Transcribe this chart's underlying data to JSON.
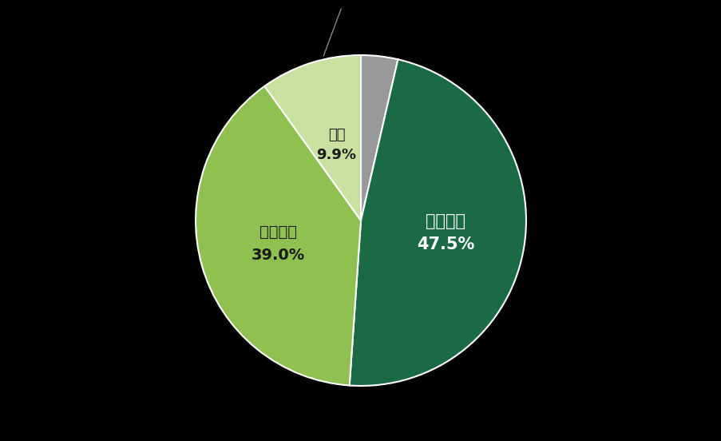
{
  "values": [
    3.6,
    47.5,
    39.0,
    9.9
  ],
  "colors": [
    "#999999",
    "#1a6b45",
    "#90c050",
    "#c8e0a0"
  ],
  "background_color": "#000000",
  "figsize": [
    9.04,
    5.52
  ],
  "dpi": 100,
  "hiragana_label": "ひらがな",
  "hiragana_pct": "47.5%",
  "katakana_label": "カタカナ",
  "katakana_pct": "39.0%",
  "kanji_label": "漢字",
  "kanji_pct": "9.9%",
  "white_color": "#ffffff",
  "dark_color": "#1a1a1a",
  "edge_color": "#ffffff",
  "line_color": "#888888"
}
